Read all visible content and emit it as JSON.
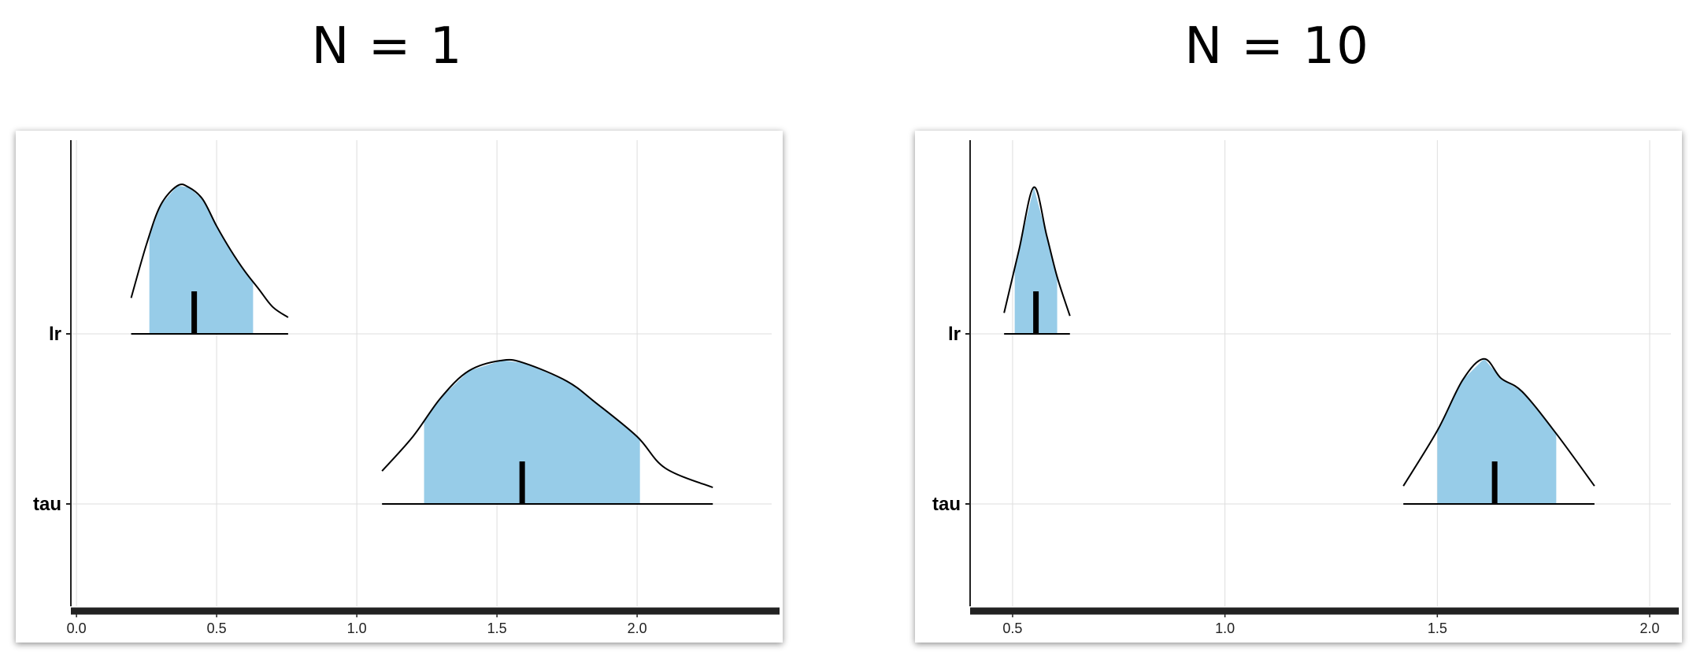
{
  "panels": [
    {
      "title": "N = 1"
    },
    {
      "title": "N = 10"
    }
  ],
  "colors": {
    "fill": "#97cce8",
    "line": "#000000",
    "grid": "#dedede",
    "axis": "#222222"
  },
  "chart_data": [
    {
      "type": "area",
      "title": "N = 1",
      "xlim": [
        -0.02,
        2.48
      ],
      "xticks": [
        0.0,
        0.5,
        1.0,
        1.5,
        2.0
      ],
      "xtick_labels": [
        "0.0",
        "0.5",
        "1.0",
        "1.5",
        "2.0"
      ],
      "categories": [
        "lr",
        "tau"
      ],
      "grid": true,
      "series": [
        {
          "name": "lr",
          "density": [
            [
              0.195,
              0.24
            ],
            [
              0.25,
              0.6
            ],
            [
              0.3,
              0.86
            ],
            [
              0.36,
              0.99
            ],
            [
              0.4,
              0.98
            ],
            [
              0.45,
              0.9
            ],
            [
              0.5,
              0.72
            ],
            [
              0.55,
              0.56
            ],
            [
              0.6,
              0.42
            ],
            [
              0.65,
              0.3
            ],
            [
              0.7,
              0.18
            ],
            [
              0.755,
              0.11
            ]
          ],
          "interval": [
            0.26,
            0.63
          ],
          "median": 0.42
        },
        {
          "name": "tau",
          "density": [
            [
              1.09,
              0.22
            ],
            [
              1.2,
              0.45
            ],
            [
              1.3,
              0.71
            ],
            [
              1.4,
              0.89
            ],
            [
              1.52,
              0.96
            ],
            [
              1.6,
              0.94
            ],
            [
              1.75,
              0.82
            ],
            [
              1.85,
              0.68
            ],
            [
              2.0,
              0.45
            ],
            [
              2.1,
              0.24
            ],
            [
              2.27,
              0.11
            ]
          ],
          "interval": [
            1.24,
            2.01
          ],
          "median": 1.59
        }
      ]
    },
    {
      "type": "area",
      "title": "N = 10",
      "xlim": [
        0.4,
        2.05
      ],
      "xticks": [
        0.5,
        1.0,
        1.5,
        2.0
      ],
      "xtick_labels": [
        "0.5",
        "1.0",
        "1.5",
        "2.0"
      ],
      "categories": [
        "lr",
        "tau"
      ],
      "grid": true,
      "series": [
        {
          "name": "lr",
          "density": [
            [
              0.48,
              0.14
            ],
            [
              0.515,
              0.56
            ],
            [
              0.55,
              0.98
            ],
            [
              0.58,
              0.66
            ],
            [
              0.605,
              0.38
            ],
            [
              0.635,
              0.12
            ]
          ],
          "interval": [
            0.505,
            0.605
          ],
          "median": 0.555
        },
        {
          "name": "tau",
          "density": [
            [
              1.42,
              0.12
            ],
            [
              1.5,
              0.49
            ],
            [
              1.56,
              0.83
            ],
            [
              1.61,
              0.97
            ],
            [
              1.65,
              0.84
            ],
            [
              1.7,
              0.75
            ],
            [
              1.78,
              0.47
            ],
            [
              1.87,
              0.12
            ]
          ],
          "interval": [
            1.5,
            1.78
          ],
          "median": 1.635
        }
      ]
    }
  ]
}
